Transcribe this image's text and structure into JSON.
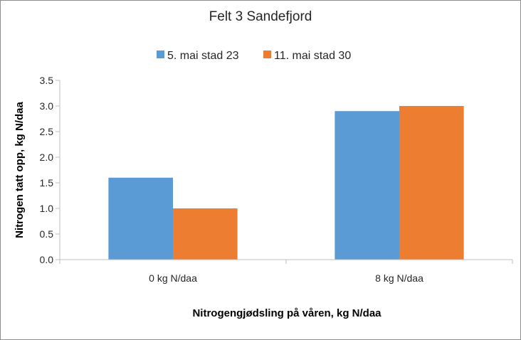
{
  "chart_data": {
    "type": "bar",
    "title": "Felt 3 Sandefjord",
    "xlabel": "Nitrogengjødsling på våren, kg N/daa",
    "ylabel": "Nitrogen tatt opp, kg N/daa",
    "categories": [
      "0 kg N/daa",
      "8 kg N/daa"
    ],
    "series": [
      {
        "name": "5. mai stad 23",
        "values": [
          1.6,
          2.9
        ],
        "color": "#5B9BD5"
      },
      {
        "name": "11. mai stad 30",
        "values": [
          1.0,
          3.0
        ],
        "color": "#ED7D31"
      }
    ],
    "ylim": [
      0,
      3.5
    ],
    "yticks": [
      "0.0",
      "0.5",
      "1.0",
      "1.5",
      "2.0",
      "2.5",
      "3.0",
      "3.5"
    ],
    "grid": false,
    "legend_position": "top"
  }
}
